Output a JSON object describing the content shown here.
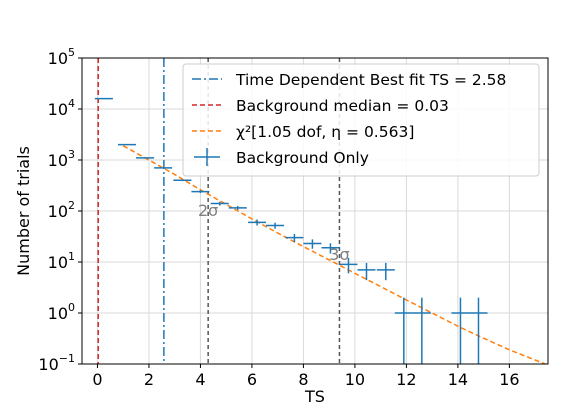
{
  "chart_data": {
    "type": "line",
    "xlabel": "TS",
    "ylabel": "Number of trials",
    "xlim": [
      -0.6,
      17.5
    ],
    "ylog": true,
    "ylim_exp": [
      -1,
      5
    ],
    "grid": true,
    "legend_position": "top-right",
    "x_ticks": [
      {
        "v": 0,
        "label": "0"
      },
      {
        "v": 2,
        "label": "2"
      },
      {
        "v": 4,
        "label": "4"
      },
      {
        "v": 6,
        "label": "6"
      },
      {
        "v": 8,
        "label": "8"
      },
      {
        "v": 10,
        "label": "10"
      },
      {
        "v": 12,
        "label": "12"
      },
      {
        "v": 14,
        "label": "14"
      },
      {
        "v": 16,
        "label": "16"
      }
    ],
    "y_ticks": [
      {
        "e": -1,
        "base": "10",
        "exp": "−1"
      },
      {
        "e": 0,
        "base": "10",
        "exp": "0"
      },
      {
        "e": 1,
        "base": "10",
        "exp": "1"
      },
      {
        "e": 2,
        "base": "10",
        "exp": "2"
      },
      {
        "e": 3,
        "base": "10",
        "exp": "3"
      },
      {
        "e": 4,
        "base": "10",
        "exp": "4"
      },
      {
        "e": 5,
        "base": "10",
        "exp": "5"
      }
    ],
    "vlines": [
      {
        "name": "Time Dependent Best fit TS = 2.58",
        "x": 2.58,
        "color": "#1f77b4",
        "dash": "9,3,2,3",
        "in_legend": true
      },
      {
        "name": "Background median = 0.03",
        "x": 0.03,
        "color": "#d62728",
        "dash": "5,3",
        "in_legend": true
      },
      {
        "name": "",
        "x": 4.3,
        "color": "#555555",
        "dash": "4,3",
        "in_legend": false
      },
      {
        "name": "",
        "x": 9.4,
        "color": "#555555",
        "dash": "4,3",
        "in_legend": false
      }
    ],
    "sigma_labels": [
      {
        "text": "2σ",
        "x": 4.3,
        "y": 80
      },
      {
        "text": "3σ",
        "x": 9.4,
        "y": 11
      }
    ],
    "chi2_fit": {
      "legend_label": "χ²[1.05 dof,  η = 0.563]",
      "color": "#ff7f0e",
      "points": [
        [
          1.0,
          1900
        ],
        [
          2.0,
          1000
        ],
        [
          3.0,
          520
        ],
        [
          4.0,
          260
        ],
        [
          5.0,
          135
        ],
        [
          6.0,
          70
        ],
        [
          7.0,
          37
        ],
        [
          8.0,
          20
        ],
        [
          9.0,
          11
        ],
        [
          10.0,
          6
        ],
        [
          11.0,
          3.3
        ],
        [
          12.0,
          1.8
        ],
        [
          13.0,
          1.0
        ],
        [
          14.0,
          0.55
        ],
        [
          15.0,
          0.32
        ],
        [
          16.0,
          0.19
        ],
        [
          17.0,
          0.12
        ],
        [
          17.5,
          0.095
        ]
      ]
    },
    "series": [
      {
        "name": "Background Only",
        "color": "#1f77b4",
        "points": [
          {
            "x": 0.25,
            "xerr": 0.35,
            "y": 16000,
            "yerr": null
          },
          {
            "x": 1.15,
            "xerr": 0.35,
            "y": 2000,
            "yerr": null
          },
          {
            "x": 1.85,
            "xerr": 0.35,
            "y": 1100,
            "yerr": null
          },
          {
            "x": 2.55,
            "xerr": 0.35,
            "y": 700,
            "yerr": null
          },
          {
            "x": 3.3,
            "xerr": 0.35,
            "y": 400,
            "yerr": null
          },
          {
            "x": 4.0,
            "xerr": 0.35,
            "y": 240,
            "yerr": 15
          },
          {
            "x": 4.75,
            "xerr": 0.35,
            "y": 140,
            "yerr": 12
          },
          {
            "x": 5.45,
            "xerr": 0.35,
            "y": 115,
            "yerr": 10
          },
          {
            "x": 6.2,
            "xerr": 0.35,
            "y": 60,
            "yerr": 8
          },
          {
            "x": 6.9,
            "xerr": 0.35,
            "y": 52,
            "yerr": 7
          },
          {
            "x": 7.65,
            "xerr": 0.35,
            "y": 30,
            "yerr": 5.5
          },
          {
            "x": 8.35,
            "xerr": 0.35,
            "y": 23,
            "yerr": 4.8
          },
          {
            "x": 9.05,
            "xerr": 0.35,
            "y": 19,
            "yerr": 4.3
          },
          {
            "x": 9.75,
            "xerr": 0.35,
            "y": 9,
            "yerr": 3
          },
          {
            "x": 10.45,
            "xerr": 0.35,
            "y": 7,
            "yerr": 2.6
          },
          {
            "x": 11.2,
            "xerr": 0.35,
            "y": 7,
            "yerr": 2.6
          },
          {
            "x": 11.9,
            "xerr": 0.35,
            "y": 1,
            "yerr": 1
          },
          {
            "x": 12.6,
            "xerr": 0.35,
            "y": 1,
            "yerr": 1
          },
          {
            "x": 14.1,
            "xerr": 0.35,
            "y": 1,
            "yerr": 1
          },
          {
            "x": 14.8,
            "xerr": 0.35,
            "y": 1,
            "yerr": 1
          }
        ]
      }
    ],
    "legend": [
      {
        "kind": "line",
        "label": "Time Dependent Best fit TS = 2.58",
        "color": "#1f77b4",
        "dash": "9,3,2,3"
      },
      {
        "kind": "line",
        "label": "Background median = 0.03",
        "color": "#d62728",
        "dash": "5,3"
      },
      {
        "kind": "line",
        "label": "χ²[1.05 dof,  η = 0.563]",
        "color": "#ff7f0e",
        "dash": "5,3"
      },
      {
        "kind": "errorbar",
        "label": "Background Only",
        "color": "#1f77b4",
        "dash": ""
      }
    ]
  }
}
